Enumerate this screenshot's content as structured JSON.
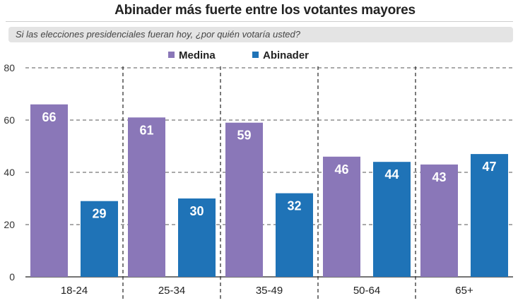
{
  "chart_data": {
    "type": "bar",
    "title": "Abinader más fuerte entre los votantes mayores",
    "subtitle": "Si las elecciones presidenciales fueran hoy, ¿por quién votaría usted?",
    "categories": [
      "18-24",
      "25-34",
      "35-49",
      "50-64",
      "65+"
    ],
    "series": [
      {
        "name": "Medina",
        "values": [
          66,
          61,
          59,
          46,
          43
        ],
        "color": "#8a77b8"
      },
      {
        "name": "Abinader",
        "values": [
          29,
          30,
          32,
          44,
          47
        ],
        "color": "#1f73b7"
      }
    ],
    "ylim": [
      0,
      80
    ],
    "yticks": [
      0,
      20,
      40,
      60,
      80
    ],
    "grid": true,
    "legend": "top",
    "xlabel": "",
    "ylabel": ""
  }
}
